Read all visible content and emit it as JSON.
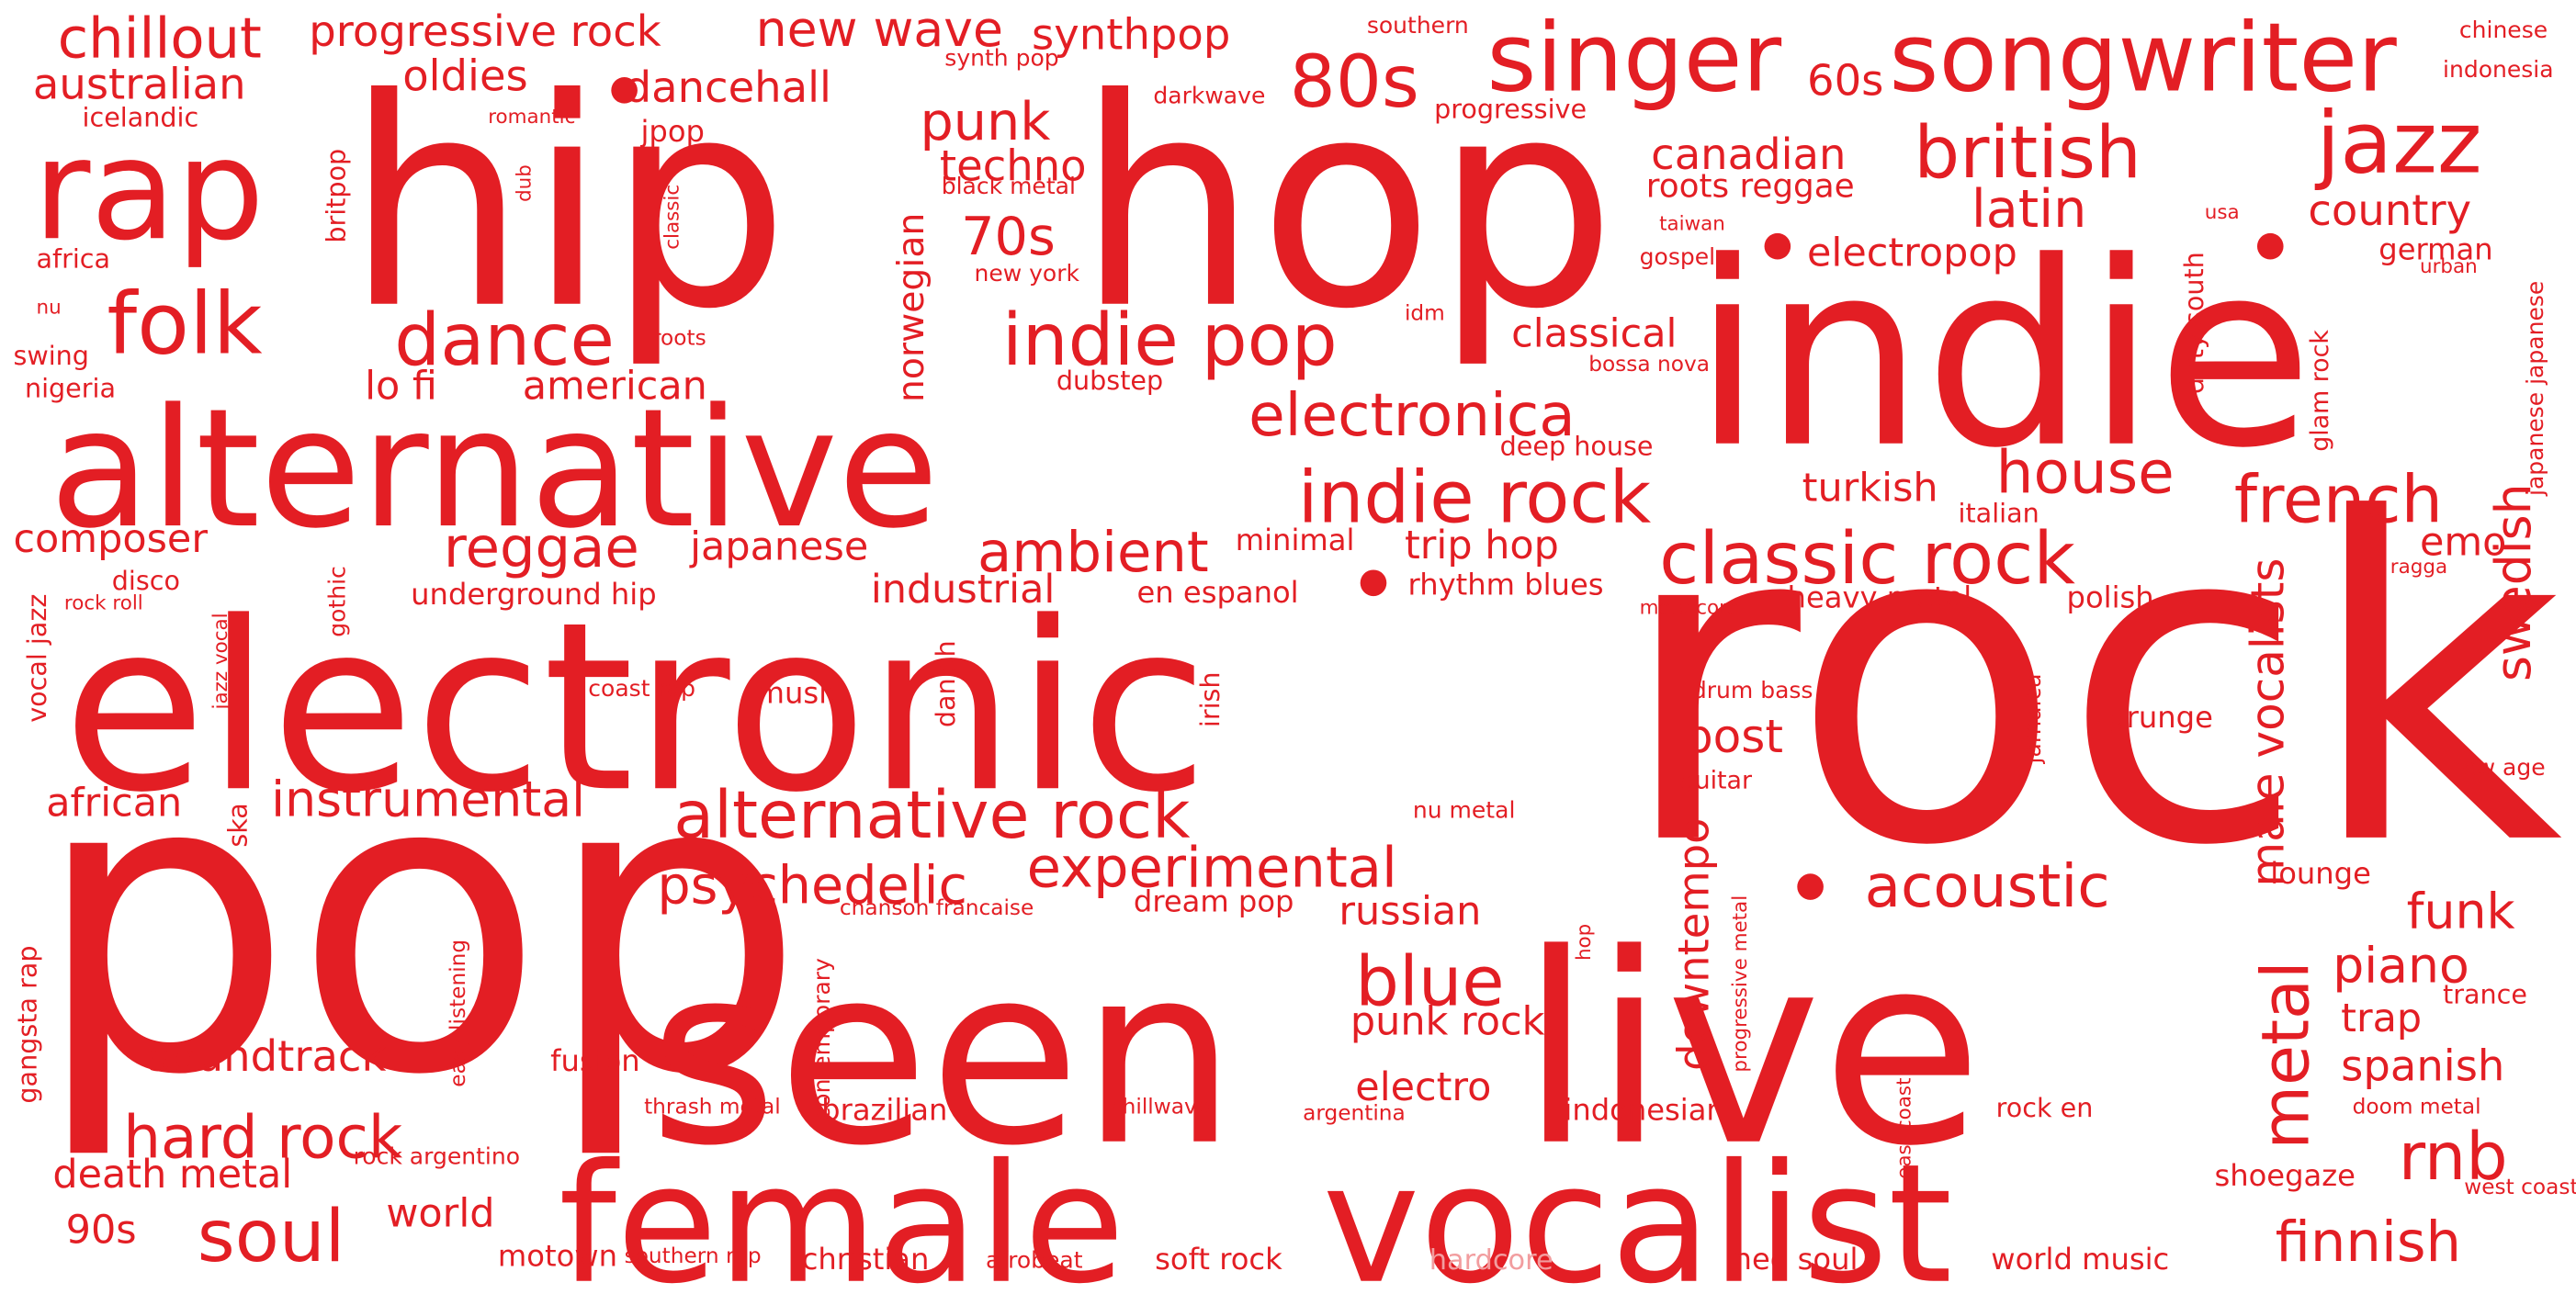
{
  "colors": {
    "primary": "#e31e24",
    "faded": "#f29d9f",
    "background": "#ffffff"
  },
  "words": [
    {
      "text": "rock"
    },
    {
      "text": "pop"
    },
    {
      "text": "hip"
    },
    {
      "text": "hop"
    },
    {
      "text": "indie"
    },
    {
      "text": "electronic"
    },
    {
      "text": "live"
    },
    {
      "text": "seen"
    },
    {
      "text": "alternative"
    },
    {
      "text": "female"
    },
    {
      "text": "vocalist"
    },
    {
      "text": "rap"
    },
    {
      "text": "singer"
    },
    {
      "text": "songwriter"
    },
    {
      "text": "jazz"
    },
    {
      "text": "folk"
    },
    {
      "text": "80s"
    },
    {
      "text": "british"
    },
    {
      "text": "alternative rock"
    },
    {
      "text": "indie pop"
    },
    {
      "text": "indie rock"
    },
    {
      "text": "classic rock"
    },
    {
      "text": "dance"
    },
    {
      "text": "soul"
    },
    {
      "text": "metal"
    },
    {
      "text": "blue"
    },
    {
      "text": "experimental"
    },
    {
      "text": "french"
    },
    {
      "text": "house"
    },
    {
      "text": "electronica"
    },
    {
      "text": "hard rock"
    },
    {
      "text": "reggae"
    },
    {
      "text": "ambient"
    },
    {
      "text": "acoustic"
    },
    {
      "text": "rnb"
    },
    {
      "text": "chillout"
    },
    {
      "text": "new wave"
    },
    {
      "text": "punk"
    },
    {
      "text": "latin"
    },
    {
      "text": "swedish"
    },
    {
      "text": "70s"
    },
    {
      "text": "instrumental"
    },
    {
      "text": "psychedelic"
    },
    {
      "text": "funk"
    },
    {
      "text": "piano"
    },
    {
      "text": "finnish"
    },
    {
      "text": "male vocalists"
    },
    {
      "text": "post"
    },
    {
      "text": "spanish"
    },
    {
      "text": "soundtrack"
    },
    {
      "text": "country"
    },
    {
      "text": "australian"
    },
    {
      "text": "progressive rock"
    },
    {
      "text": "synthpop"
    },
    {
      "text": "oldies"
    },
    {
      "text": "dancehall"
    },
    {
      "text": "canadian"
    },
    {
      "text": "techno"
    },
    {
      "text": "60s"
    },
    {
      "text": "electropop"
    },
    {
      "text": "classical"
    },
    {
      "text": "lo fi"
    },
    {
      "text": "american"
    },
    {
      "text": "trip hop"
    },
    {
      "text": "japanese"
    },
    {
      "text": "industrial"
    },
    {
      "text": "turkish"
    },
    {
      "text": "russian"
    },
    {
      "text": "punk rock"
    },
    {
      "text": "electro"
    },
    {
      "text": "downtempo"
    },
    {
      "text": "composer"
    },
    {
      "text": "african"
    },
    {
      "text": "death metal"
    },
    {
      "text": "world"
    },
    {
      "text": "90s"
    },
    {
      "text": "emo"
    },
    {
      "text": "norwegian"
    },
    {
      "text": "trap"
    },
    {
      "text": "roots reggae"
    },
    {
      "text": "german"
    },
    {
      "text": "heavy metal"
    },
    {
      "text": "polish"
    },
    {
      "text": "rhythm blues"
    },
    {
      "text": "grunge"
    },
    {
      "text": "music"
    },
    {
      "text": "dream pop"
    },
    {
      "text": "shoegaze"
    },
    {
      "text": "soft rock"
    },
    {
      "text": "christian"
    },
    {
      "text": "motown"
    },
    {
      "text": "neo soul"
    },
    {
      "text": "world music"
    },
    {
      "text": "indonesian"
    },
    {
      "text": "brazilian"
    },
    {
      "text": "fusion"
    },
    {
      "text": "lounge"
    },
    {
      "text": "trance"
    },
    {
      "text": "underground hip"
    },
    {
      "text": "minimal"
    },
    {
      "text": "en espanol"
    },
    {
      "text": "dubstep"
    },
    {
      "text": "deep house"
    },
    {
      "text": "progressive"
    },
    {
      "text": "icelandic"
    },
    {
      "text": "swing"
    },
    {
      "text": "nigeria"
    },
    {
      "text": "disco"
    },
    {
      "text": "africa"
    },
    {
      "text": "jpop"
    },
    {
      "text": "darkwave"
    },
    {
      "text": "synth pop"
    },
    {
      "text": "southern"
    },
    {
      "text": "chinese"
    },
    {
      "text": "indonesia"
    },
    {
      "text": "taiwan"
    },
    {
      "text": "usa"
    },
    {
      "text": "gospel"
    },
    {
      "text": "new york"
    },
    {
      "text": "black metal"
    },
    {
      "text": "romantic"
    },
    {
      "text": "britpop"
    },
    {
      "text": "dub"
    },
    {
      "text": "classic"
    },
    {
      "text": "nu"
    },
    {
      "text": "roots"
    },
    {
      "text": "idm"
    },
    {
      "text": "bossa nova"
    },
    {
      "text": "italian"
    },
    {
      "text": "metalcore"
    },
    {
      "text": "ragga"
    },
    {
      "text": "urban"
    },
    {
      "text": "japanese japanese"
    },
    {
      "text": "glam rock"
    },
    {
      "text": "dirty south"
    },
    {
      "text": "gothic"
    },
    {
      "text": "rock roll"
    },
    {
      "text": "vocal jazz"
    },
    {
      "text": "jazz vocal"
    },
    {
      "text": "coast rap"
    },
    {
      "text": "drum bass"
    },
    {
      "text": "danish"
    },
    {
      "text": "irish"
    },
    {
      "text": "jamaica"
    },
    {
      "text": "guitar"
    },
    {
      "text": "new age"
    },
    {
      "text": "ska"
    },
    {
      "text": "nu metal"
    },
    {
      "text": "chanson francaise"
    },
    {
      "text": "gangsta rap"
    },
    {
      "text": "easy listening"
    },
    {
      "text": "contemporary"
    },
    {
      "text": "hop"
    },
    {
      "text": "progressive metal"
    },
    {
      "text": "east coast"
    },
    {
      "text": "doom metal"
    },
    {
      "text": "west coast"
    },
    {
      "text": "thrash metal"
    },
    {
      "text": "chillwave"
    },
    {
      "text": "argentina"
    },
    {
      "text": "rock en"
    },
    {
      "text": "rock argentino"
    },
    {
      "text": "southern rap"
    },
    {
      "text": "afrobeat"
    },
    {
      "text": "hardcore"
    }
  ]
}
